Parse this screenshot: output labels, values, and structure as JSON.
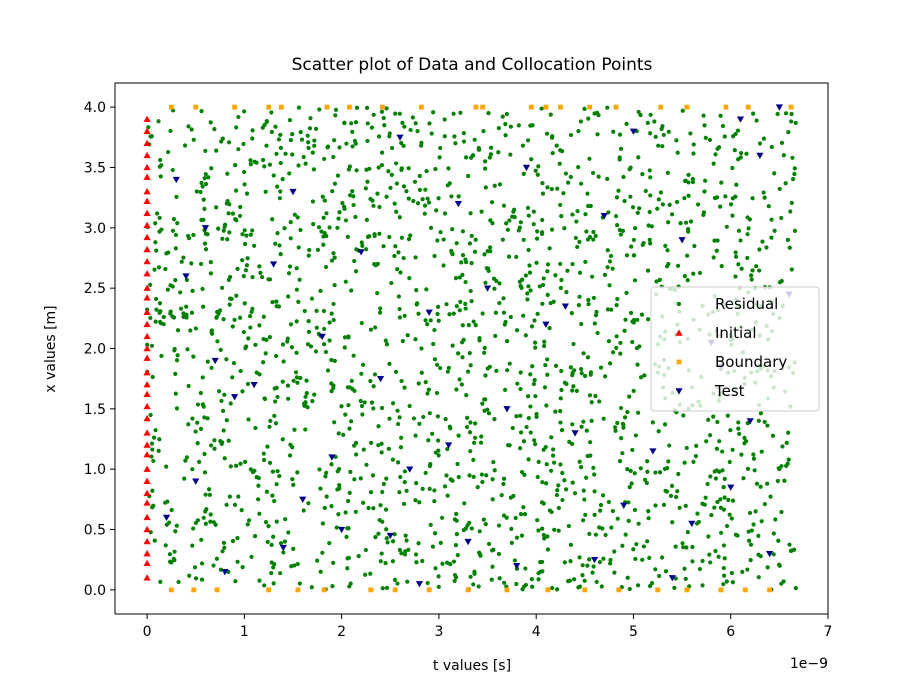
{
  "chart_data": {
    "type": "scatter",
    "title": "Scatter plot of Data and Collocation Points",
    "xlabel": "t values [s]",
    "ylabel": "x values [m]",
    "x_offset_text": "1e−9",
    "x_unit_scale": 1e-09,
    "xlim": [
      -0.33,
      7.0
    ],
    "ylim": [
      -0.2,
      4.2
    ],
    "xticks": [
      0,
      1,
      2,
      3,
      4,
      5,
      6,
      7
    ],
    "xtick_labels": [
      "0",
      "1",
      "2",
      "3",
      "4",
      "5",
      "6",
      "7"
    ],
    "yticks": [
      0.0,
      0.5,
      1.0,
      1.5,
      2.0,
      2.5,
      3.0,
      3.5,
      4.0
    ],
    "ytick_labels": [
      "0.0",
      "0.5",
      "1.0",
      "1.5",
      "2.0",
      "2.5",
      "3.0",
      "3.5",
      "4.0"
    ],
    "grid": false,
    "legend_position": "center-right",
    "series": [
      {
        "name": "Residual",
        "marker": "circle",
        "color": "#008000",
        "point_count": 2000,
        "t_range": [
          0.0,
          6.67
        ],
        "x_range": [
          0.0,
          4.0
        ],
        "distribution": "uniform-random"
      },
      {
        "name": "Initial",
        "marker": "triangle-up",
        "color": "#ff0000",
        "t": 0,
        "x": [
          0.1,
          0.22,
          0.3,
          0.4,
          0.5,
          0.6,
          0.72,
          0.8,
          0.9,
          1.0,
          1.12,
          1.2,
          1.3,
          1.42,
          1.52,
          1.62,
          1.7,
          1.8,
          1.92,
          2.0,
          2.1,
          2.2,
          2.3,
          2.42,
          2.5,
          2.62,
          2.72,
          2.82,
          2.92,
          3.02,
          3.12,
          3.22,
          3.3,
          3.42,
          3.5,
          3.6,
          3.7,
          3.8,
          3.9
        ]
      },
      {
        "name": "Boundary",
        "marker": "square",
        "color": "#ffa500",
        "x_lower": 0.0,
        "x_upper": 4.0,
        "t_lower": [
          0.25,
          0.48,
          0.72,
          1.25,
          1.55,
          1.82,
          2.3,
          2.55,
          2.9,
          3.3,
          3.7,
          4.12,
          4.5,
          4.85,
          5.25,
          5.55,
          5.9,
          6.15,
          6.4
        ],
        "t_upper": [
          0.25,
          0.5,
          0.9,
          1.25,
          1.38,
          1.85,
          2.08,
          2.42,
          2.82,
          3.38,
          3.45,
          3.95,
          4.1,
          4.25,
          4.55,
          4.82,
          5.28,
          5.55,
          5.95,
          6.18,
          6.62
        ]
      },
      {
        "name": "Test",
        "marker": "triangle-down",
        "color": "#00008b",
        "t": [
          6.5,
          5.0,
          3.9,
          2.6,
          1.5,
          0.3,
          3.2,
          4.7,
          6.3,
          5.5,
          2.2,
          1.3,
          0.4,
          3.5,
          6.6,
          4.1,
          2.9,
          1.8,
          0.7,
          5.8,
          0.9,
          2.4,
          3.7,
          6.2,
          4.4,
          1.1,
          5.2,
          2.7,
          0.5,
          3.1,
          6.0,
          4.9,
          1.6,
          0.2,
          2.0,
          5.6,
          3.3,
          6.4,
          4.6,
          1.4,
          0.8,
          2.8,
          5.4,
          3.8,
          6.1,
          0.6,
          1.9,
          4.3,
          2.5,
          5.9
        ],
        "x": [
          4.0,
          3.8,
          3.5,
          3.75,
          3.3,
          3.4,
          3.2,
          3.1,
          3.6,
          2.9,
          2.8,
          2.7,
          2.6,
          2.5,
          2.45,
          2.2,
          2.3,
          2.1,
          1.9,
          2.05,
          1.6,
          1.75,
          1.5,
          1.4,
          1.3,
          1.7,
          1.15,
          1.0,
          0.9,
          1.2,
          0.85,
          0.7,
          0.75,
          0.6,
          0.5,
          0.55,
          0.4,
          0.3,
          0.25,
          0.35,
          0.15,
          0.05,
          0.1,
          0.2,
          3.9,
          3.0,
          1.1,
          2.35,
          0.45,
          1.85
        ]
      }
    ]
  }
}
